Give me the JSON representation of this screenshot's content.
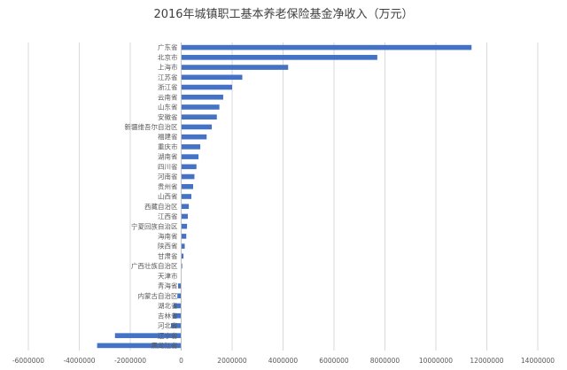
{
  "chart_data": {
    "type": "bar",
    "orientation": "horizontal",
    "title": "2016年城镇职工基本养老保险基金净收入（万元）",
    "xlabel": "",
    "ylabel": "",
    "xlim": [
      -6000000,
      14000000
    ],
    "xticks": [
      -6000000,
      -4000000,
      -2000000,
      0,
      2000000,
      4000000,
      6000000,
      8000000,
      10000000,
      12000000,
      14000000
    ],
    "xtick_labels": [
      "-6000000",
      "-4000000",
      "-2000000",
      "0",
      "2000000",
      "4000000",
      "6000000",
      "8000000",
      "10000000",
      "12000000",
      "14000000"
    ],
    "grid": true,
    "legend": "none",
    "bar_color": "#4472c4",
    "categories": [
      "广东省",
      "北京市",
      "上海市",
      "江苏省",
      "浙江省",
      "云南省",
      "山东省",
      "安徽省",
      "新疆维吾尔自治区",
      "福建省",
      "重庆市",
      "湖南省",
      "四川省",
      "河南省",
      "贵州省",
      "山西省",
      "西藏自治区",
      "江西省",
      "宁夏回族自治区",
      "海南省",
      "陕西省",
      "甘肃省",
      "广西壮族自治区",
      "天津市",
      "青海省",
      "内蒙古自治区",
      "湖北省",
      "吉林省",
      "河北省",
      "辽宁省",
      "黑龙江省"
    ],
    "values": [
      11400000,
      7700000,
      4200000,
      2400000,
      2000000,
      1650000,
      1500000,
      1400000,
      1200000,
      1000000,
      750000,
      680000,
      600000,
      520000,
      470000,
      400000,
      300000,
      260000,
      230000,
      200000,
      140000,
      90000,
      40000,
      0,
      -120000,
      -150000,
      -300000,
      -320000,
      -400000,
      -2600000,
      -3300000
    ]
  }
}
